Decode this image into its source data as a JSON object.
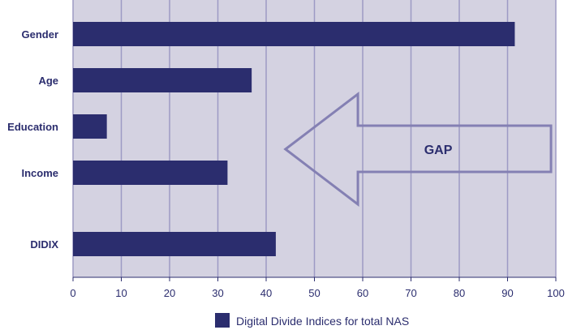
{
  "chart_data": {
    "type": "bar",
    "orientation": "horizontal",
    "categories": [
      "Gender",
      "Age",
      "Education",
      "Income",
      "DIDIX"
    ],
    "series": [
      {
        "name": "Digital Divide Indices for total NAS",
        "values": [
          91.5,
          37,
          7,
          32,
          42
        ]
      }
    ],
    "xlim": [
      0,
      100
    ],
    "xticks": [
      "0",
      "10",
      "20",
      "30",
      "40",
      "50",
      "60",
      "70",
      "80",
      "90",
      "100"
    ],
    "grid": true,
    "legend_position": "bottom",
    "annotations": [
      {
        "text": "GAP",
        "shape": "left-pointing arrow",
        "from_x": 99,
        "to_x": 44
      }
    ]
  },
  "colors": {
    "bar": "#2b2d6e",
    "plot_background": "#d4d2e1",
    "grid": "#9d9ac4",
    "arrow": "#8480b3",
    "text": "#2b2d6e"
  }
}
